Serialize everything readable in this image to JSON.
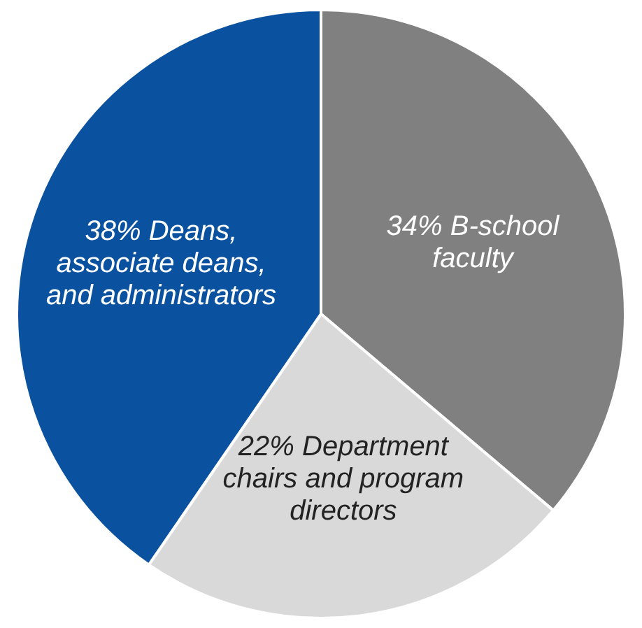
{
  "chart_data": {
    "type": "pie",
    "categories": [
      "B-school faculty",
      "Department chairs and program directors",
      "Deans, associate deans, and administrators"
    ],
    "values": [
      34,
      22,
      38
    ],
    "value_labels": [
      "34%",
      "22%",
      "38%"
    ],
    "colors": [
      "#808080",
      "#d9d9d9",
      "#0a52a0"
    ],
    "legend": false
  }
}
